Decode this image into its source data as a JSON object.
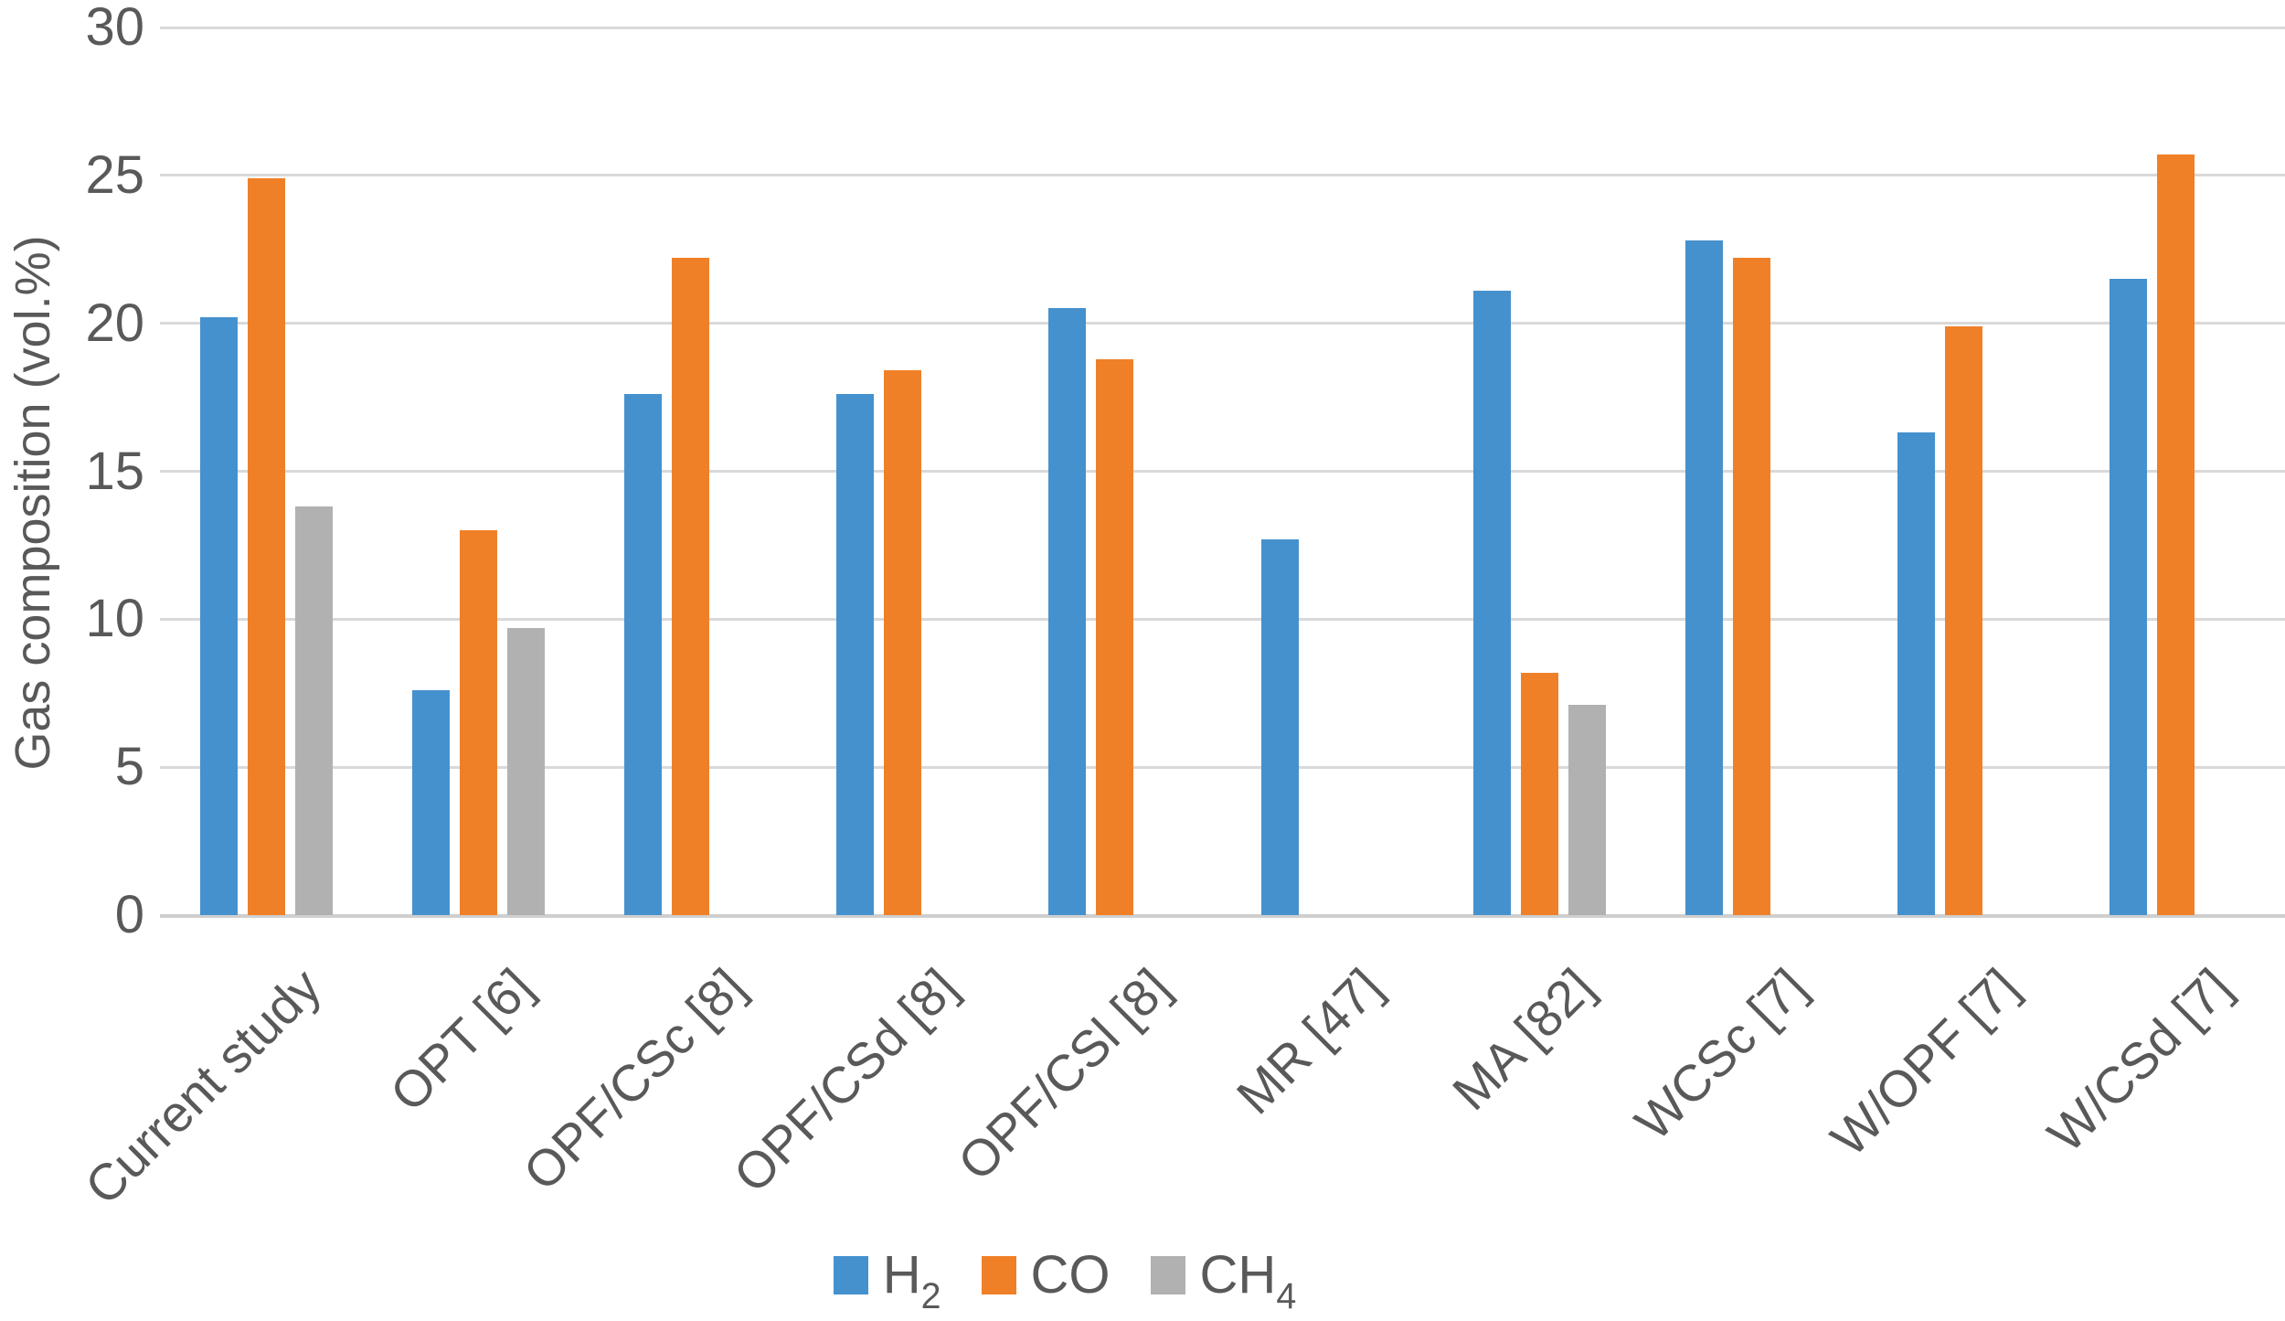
{
  "chart_data": {
    "type": "bar",
    "title": "",
    "ylabel": "Gas composition (vol.%)",
    "xlabel": "",
    "ylim": [
      0,
      30
    ],
    "yticks": [
      0,
      5,
      10,
      15,
      20,
      25,
      30
    ],
    "grid": true,
    "legend_position": "bottom-center",
    "axis_text_color": "#595959",
    "gridline_color": "#D9D9D9",
    "categories": [
      "Current study",
      "OPT [6]",
      "OPF/CSc [8]",
      "OPF/CSd [8]",
      "OPF/CSl [8]",
      "MR [47]",
      "MA [82]",
      "WCSc [7]",
      "W/OPF [7]",
      "W/CSd [7]"
    ],
    "series": [
      {
        "name": "H2",
        "legend_base": "H",
        "legend_sub": "2",
        "color": "#4591CE",
        "values": [
          20.2,
          7.6,
          17.6,
          17.6,
          20.5,
          12.7,
          21.1,
          22.8,
          16.3,
          21.5
        ]
      },
      {
        "name": "CO",
        "legend_base": "CO",
        "legend_sub": "",
        "color": "#F08028",
        "values": [
          24.9,
          13.0,
          22.2,
          18.4,
          18.8,
          null,
          8.2,
          22.2,
          19.9,
          25.7
        ]
      },
      {
        "name": "CH4",
        "legend_base": "CH",
        "legend_sub": "4",
        "color": "#B1B1B1",
        "values": [
          13.8,
          9.7,
          null,
          null,
          null,
          null,
          7.1,
          null,
          null,
          null
        ]
      }
    ]
  }
}
